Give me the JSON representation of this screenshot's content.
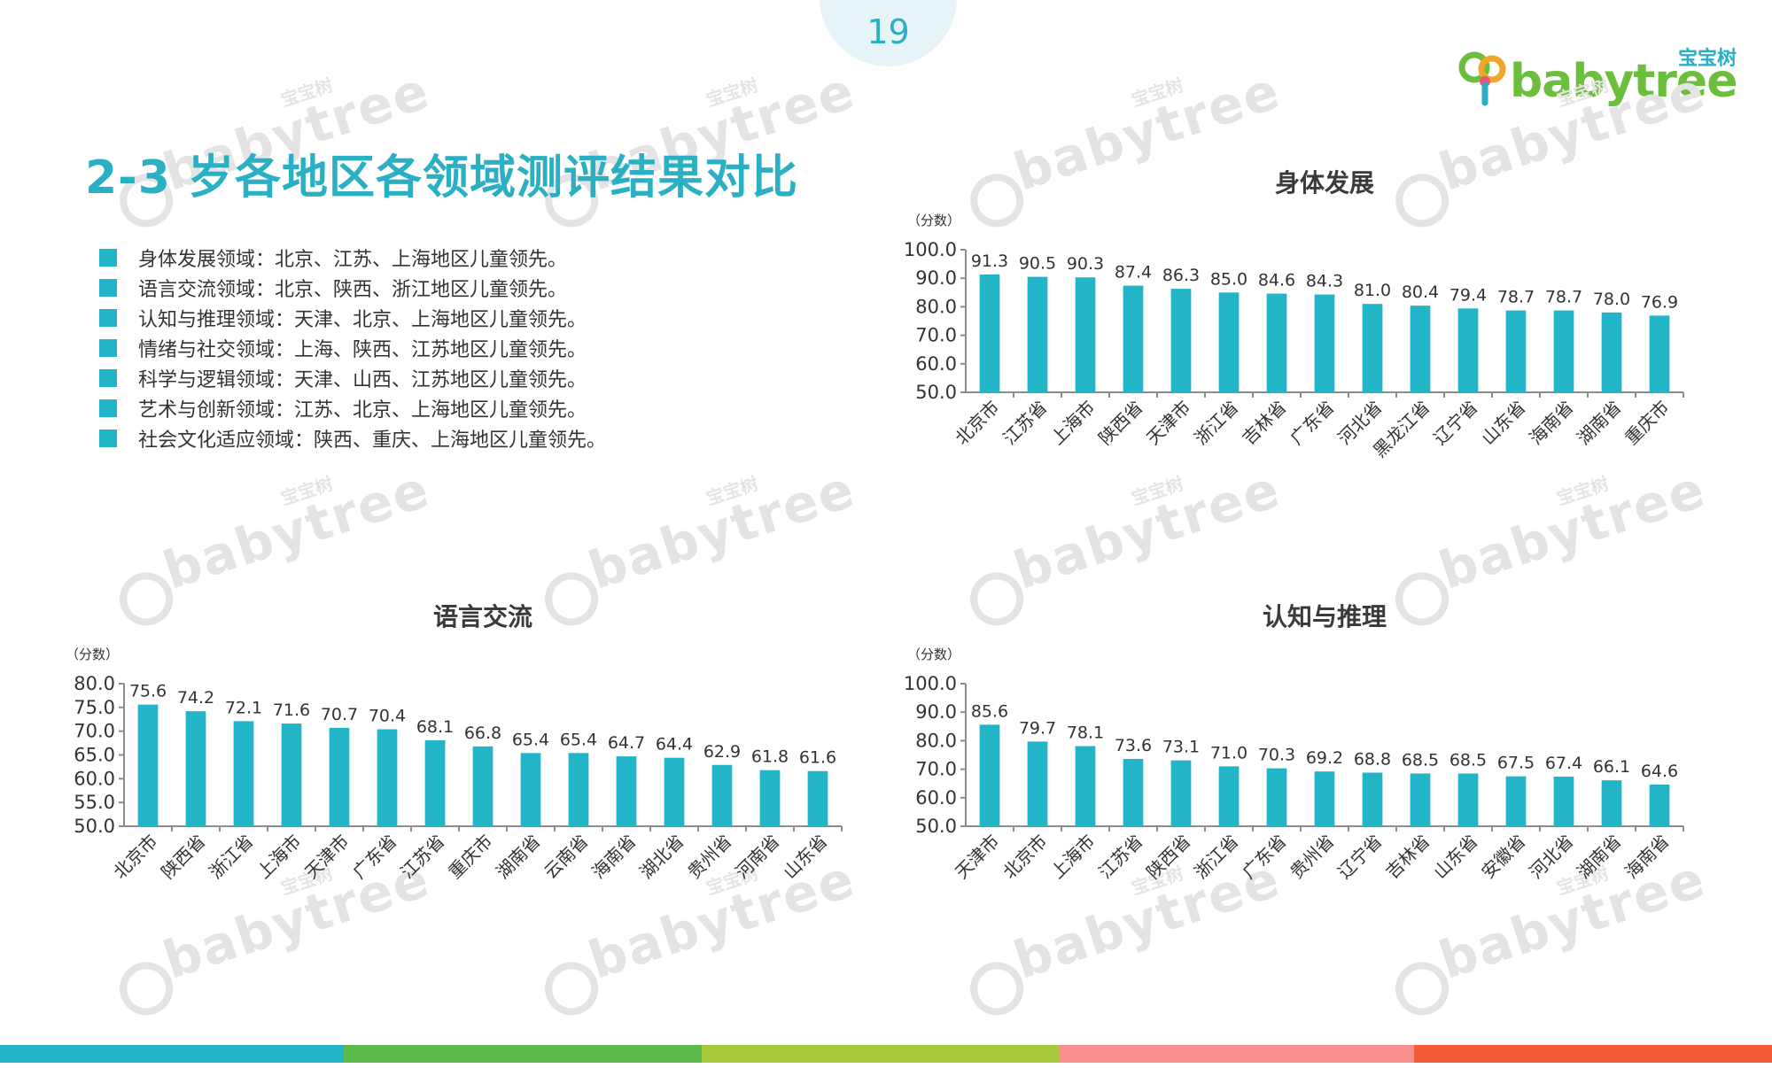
{
  "page_number": "19",
  "logo": {
    "cn": "宝宝树",
    "word": "babytree"
  },
  "watermark": {
    "cn": "宝宝树",
    "word": "babytree"
  },
  "title": "2-3 岁各地区各领域测评结果对比",
  "summary": [
    "身体发展领域：北京、江苏、上海地区儿童领先。",
    "语言交流领域：北京、陕西、浙江地区儿童领先。",
    "认知与推理领域：天津、北京、上海地区儿童领先。",
    "情绪与社交领域：上海、陕西、江苏地区儿童领先。",
    "科学与逻辑领域：天津、山西、江苏地区儿童领先。",
    "艺术与创新领域：江苏、北京、上海地区儿童领先。",
    "社会文化适应领域：陕西、重庆、上海地区儿童领先。"
  ],
  "colors": {
    "accent": "#2bb0c3",
    "bar": "#22b5c8",
    "bottom_bar": [
      "#22b5c8",
      "#5cbb4a",
      "#a8c83c",
      "#f98f8f",
      "#f25b3a"
    ]
  },
  "chart_data": [
    {
      "type": "bar",
      "title": "身体发展",
      "ylabel": "（分数）",
      "ylim": [
        50,
        100
      ],
      "yticks": [
        "50.0",
        "60.0",
        "70.0",
        "80.0",
        "90.0",
        "100.0"
      ],
      "categories": [
        "北京市",
        "江苏省",
        "上海市",
        "陕西省",
        "天津市",
        "浙江省",
        "吉林省",
        "广东省",
        "河北省",
        "黑龙江省",
        "辽宁省",
        "山东省",
        "海南省",
        "湖南省",
        "重庆市"
      ],
      "values": [
        91.3,
        90.5,
        90.3,
        87.4,
        86.3,
        85.0,
        84.6,
        84.3,
        81.0,
        80.4,
        79.4,
        78.7,
        78.7,
        78.0,
        76.9
      ],
      "grid": false,
      "data_labels": true
    },
    {
      "type": "bar",
      "title": "语言交流",
      "ylabel": "（分数）",
      "ylim": [
        50,
        80
      ],
      "yticks": [
        "50.0",
        "55.0",
        "60.0",
        "65.0",
        "70.0",
        "75.0",
        "80.0"
      ],
      "categories": [
        "北京市",
        "陕西省",
        "浙江省",
        "上海市",
        "天津市",
        "广东省",
        "江苏省",
        "重庆市",
        "湖南省",
        "云南省",
        "海南省",
        "湖北省",
        "贵州省",
        "河南省",
        "山东省"
      ],
      "values": [
        75.6,
        74.2,
        72.1,
        71.6,
        70.7,
        70.4,
        68.1,
        66.8,
        65.4,
        65.4,
        64.7,
        64.4,
        62.9,
        61.8,
        61.6
      ],
      "grid": false,
      "data_labels": true
    },
    {
      "type": "bar",
      "title": "认知与推理",
      "ylabel": "（分数）",
      "ylim": [
        50,
        100
      ],
      "yticks": [
        "50.0",
        "60.0",
        "70.0",
        "80.0",
        "90.0",
        "100.0"
      ],
      "categories": [
        "天津市",
        "北京市",
        "上海市",
        "江苏省",
        "陕西省",
        "浙江省",
        "广东省",
        "贵州省",
        "辽宁省",
        "吉林省",
        "山东省",
        "安徽省",
        "河北省",
        "湖南省",
        "海南省"
      ],
      "values": [
        85.6,
        79.7,
        78.1,
        73.6,
        73.1,
        71.0,
        70.3,
        69.2,
        68.8,
        68.5,
        68.5,
        67.5,
        67.4,
        66.1,
        64.6
      ],
      "grid": false,
      "data_labels": true
    }
  ]
}
